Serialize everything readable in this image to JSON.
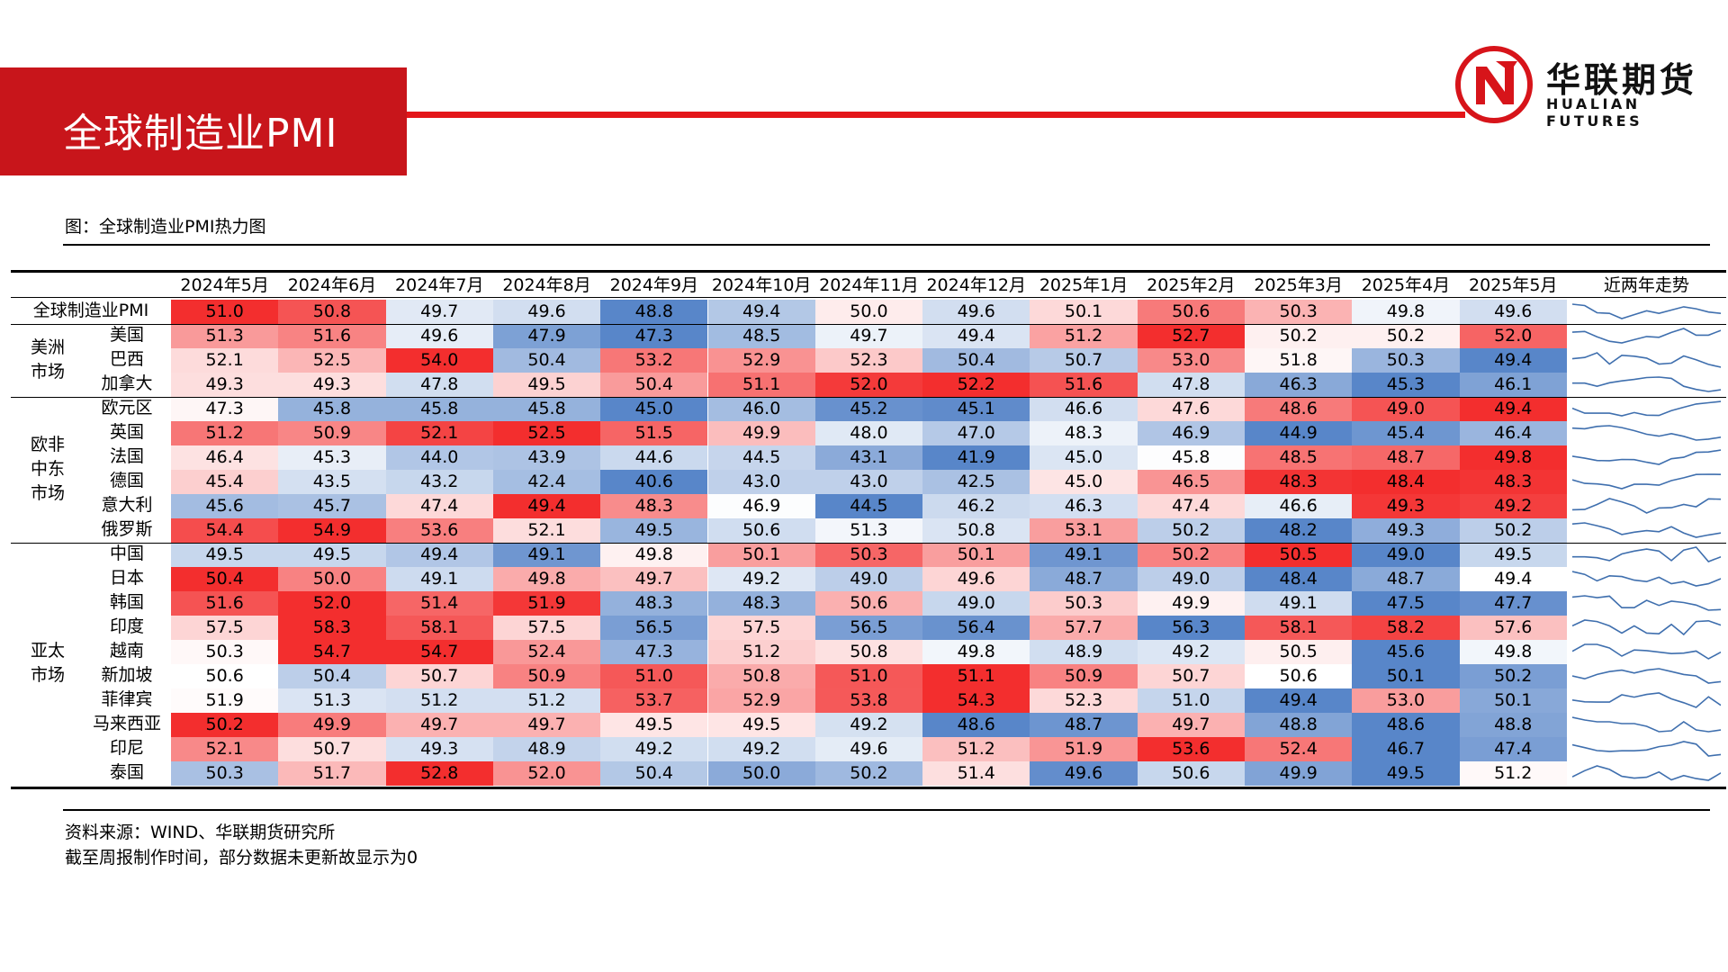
{
  "header": {
    "title": "全球制造业PMI",
    "brand_name": "华联期货",
    "brand_sub": "HUALIAN FUTURES",
    "accent": "#e41519"
  },
  "caption": "图：全球制造业PMI热力图",
  "source_line1": "资料来源：WIND、华联期货研究所",
  "source_line2": "截至周报制作时间，部分数据未更新故显示为0",
  "chart_data": {
    "type": "heatmap",
    "columns": [
      "2024年5月",
      "2024年6月",
      "2024年7月",
      "2024年8月",
      "2024年9月",
      "2024年10月",
      "2024年11月",
      "2024年12月",
      "2025年1月",
      "2025年2月",
      "2025年3月",
      "2025年4月",
      "2025年5月"
    ],
    "trend_header": "近两年走势",
    "rows": [
      {
        "group": "",
        "name": "全球制造业PMI",
        "values": [
          51.0,
          50.8,
          49.7,
          49.6,
          48.8,
          49.4,
          50.0,
          49.6,
          50.1,
          50.6,
          50.3,
          49.8,
          49.6
        ]
      },
      {
        "group": "美洲市场",
        "name": "美国",
        "values": [
          51.3,
          51.6,
          49.6,
          47.9,
          47.3,
          48.5,
          49.7,
          49.4,
          51.2,
          52.7,
          50.2,
          50.2,
          52.0
        ]
      },
      {
        "group": "美洲市场",
        "name": "巴西",
        "values": [
          52.1,
          52.5,
          54.0,
          50.4,
          53.2,
          52.9,
          52.3,
          50.4,
          50.7,
          53.0,
          51.8,
          50.3,
          49.4
        ]
      },
      {
        "group": "美洲市场",
        "name": "加拿大",
        "values": [
          49.3,
          49.3,
          47.8,
          49.5,
          50.4,
          51.1,
          52.0,
          52.2,
          51.6,
          47.8,
          46.3,
          45.3,
          46.1
        ]
      },
      {
        "group": "欧非中东市场",
        "name": "欧元区",
        "values": [
          47.3,
          45.8,
          45.8,
          45.8,
          45.0,
          46.0,
          45.2,
          45.1,
          46.6,
          47.6,
          48.6,
          49.0,
          49.4
        ]
      },
      {
        "group": "欧非中东市场",
        "name": "英国",
        "values": [
          51.2,
          50.9,
          52.1,
          52.5,
          51.5,
          49.9,
          48.0,
          47.0,
          48.3,
          46.9,
          44.9,
          45.4,
          46.4
        ]
      },
      {
        "group": "欧非中东市场",
        "name": "法国",
        "values": [
          46.4,
          45.3,
          44.0,
          43.9,
          44.6,
          44.5,
          43.1,
          41.9,
          45.0,
          45.8,
          48.5,
          48.7,
          49.8
        ]
      },
      {
        "group": "欧非中东市场",
        "name": "德国",
        "values": [
          45.4,
          43.5,
          43.2,
          42.4,
          40.6,
          43.0,
          43.0,
          42.5,
          45.0,
          46.5,
          48.3,
          48.4,
          48.3
        ]
      },
      {
        "group": "欧非中东市场",
        "name": "意大利",
        "values": [
          45.6,
          45.7,
          47.4,
          49.4,
          48.3,
          46.9,
          44.5,
          46.2,
          46.3,
          47.4,
          46.6,
          49.3,
          49.2
        ]
      },
      {
        "group": "欧非中东市场",
        "name": "俄罗斯",
        "values": [
          54.4,
          54.9,
          53.6,
          52.1,
          49.5,
          50.6,
          51.3,
          50.8,
          53.1,
          50.2,
          48.2,
          49.3,
          50.2
        ]
      },
      {
        "group": "亚太市场",
        "name": "中国",
        "values": [
          49.5,
          49.5,
          49.4,
          49.1,
          49.8,
          50.1,
          50.3,
          50.1,
          49.1,
          50.2,
          50.5,
          49.0,
          49.5
        ]
      },
      {
        "group": "亚太市场",
        "name": "日本",
        "values": [
          50.4,
          50.0,
          49.1,
          49.8,
          49.7,
          49.2,
          49.0,
          49.6,
          48.7,
          49.0,
          48.4,
          48.7,
          49.4
        ]
      },
      {
        "group": "亚太市场",
        "name": "韩国",
        "values": [
          51.6,
          52.0,
          51.4,
          51.9,
          48.3,
          48.3,
          50.6,
          49.0,
          50.3,
          49.9,
          49.1,
          47.5,
          47.7
        ]
      },
      {
        "group": "亚太市场",
        "name": "印度",
        "values": [
          57.5,
          58.3,
          58.1,
          57.5,
          56.5,
          57.5,
          56.5,
          56.4,
          57.7,
          56.3,
          58.1,
          58.2,
          57.6
        ]
      },
      {
        "group": "亚太市场",
        "name": "越南",
        "values": [
          50.3,
          54.7,
          54.7,
          52.4,
          47.3,
          51.2,
          50.8,
          49.8,
          48.9,
          49.2,
          50.5,
          45.6,
          49.8
        ]
      },
      {
        "group": "亚太市场",
        "name": "新加坡",
        "values": [
          50.6,
          50.4,
          50.7,
          50.9,
          51.0,
          50.8,
          51.0,
          51.1,
          50.9,
          50.7,
          50.6,
          50.1,
          50.2
        ]
      },
      {
        "group": "亚太市场",
        "name": "菲律宾",
        "values": [
          51.9,
          51.3,
          51.2,
          51.2,
          53.7,
          52.9,
          53.8,
          54.3,
          52.3,
          51.0,
          49.4,
          53.0,
          50.1
        ]
      },
      {
        "group": "亚太市场",
        "name": "马来西亚",
        "values": [
          50.2,
          49.9,
          49.7,
          49.7,
          49.5,
          49.5,
          49.2,
          48.6,
          48.7,
          49.7,
          48.8,
          48.6,
          48.8
        ]
      },
      {
        "group": "亚太市场",
        "name": "印尼",
        "values": [
          52.1,
          50.7,
          49.3,
          48.9,
          49.2,
          49.2,
          49.6,
          51.2,
          51.9,
          53.6,
          52.4,
          46.7,
          47.4
        ]
      },
      {
        "group": "亚太市场",
        "name": "泰国",
        "values": [
          50.3,
          51.7,
          52.8,
          52.0,
          50.4,
          50.0,
          50.2,
          51.4,
          49.6,
          50.6,
          49.9,
          49.5,
          51.2
        ]
      }
    ],
    "groups": [
      {
        "name": "美洲市场",
        "lines": [
          "美洲",
          "市场"
        ]
      },
      {
        "name": "欧非中东市场",
        "lines": [
          "欧非",
          "中东",
          "市场"
        ]
      },
      {
        "name": "亚太市场",
        "lines": [
          "亚太",
          "市场"
        ]
      }
    ],
    "color_scale": {
      "low": "#4a7bc4",
      "mid": "#ffffff",
      "high": "#f21c1c",
      "scope": "per-row"
    },
    "sparkline_color": "#3f6fae"
  }
}
